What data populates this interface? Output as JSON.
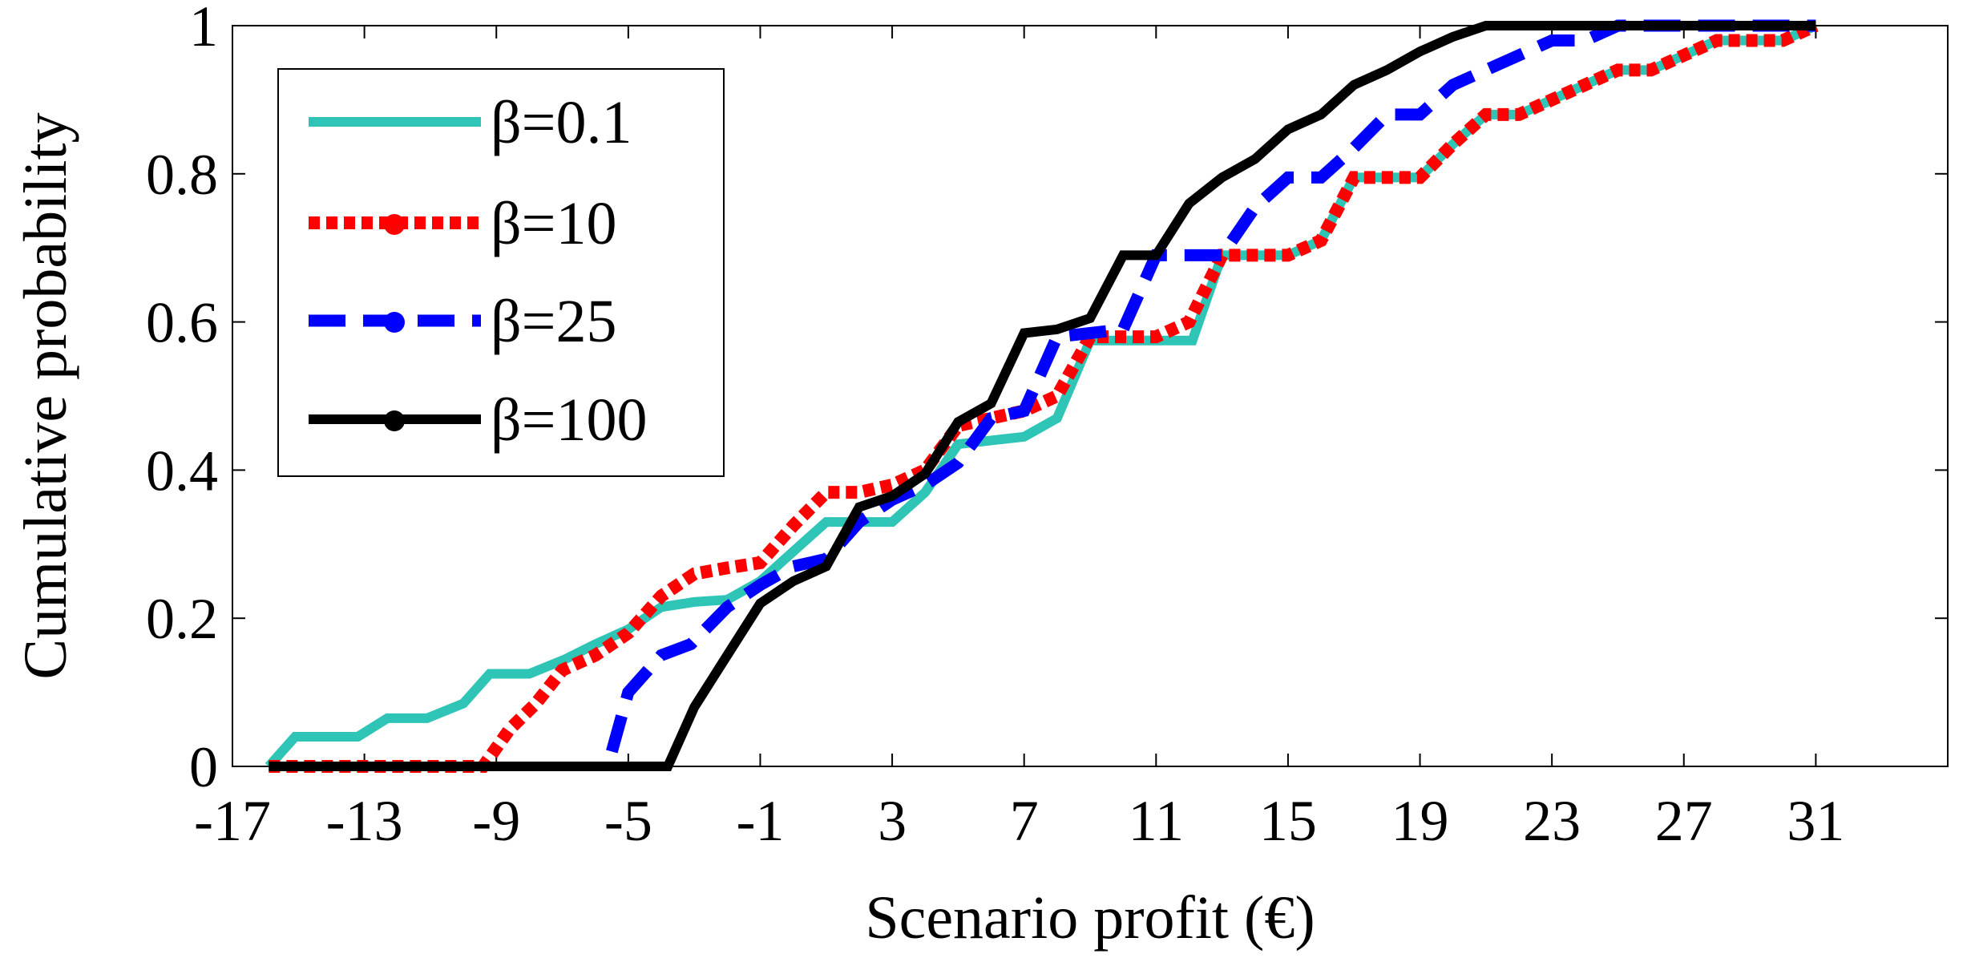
{
  "chart_data": {
    "type": "line",
    "title": "",
    "xlabel": "Scenario profit (€)",
    "ylabel": "Cumulative probability",
    "xlim": [
      -17,
      35
    ],
    "ylim": [
      0,
      1
    ],
    "xticks": [
      -17,
      -13,
      -9,
      -5,
      -1,
      3,
      7,
      11,
      15,
      19,
      23,
      27,
      31
    ],
    "yticks": [
      0,
      0.2,
      0.4,
      0.6,
      0.8,
      1
    ],
    "xtick_labels": [
      "-17",
      "-13",
      "-9",
      "-5",
      "-1",
      "3",
      "7",
      "11",
      "15",
      "19",
      "23",
      "27",
      "31"
    ],
    "ytick_labels": [
      "0",
      "0.2",
      "0.4",
      "0.6",
      "0.8",
      "1"
    ],
    "grid": false,
    "legend_position": "top-left",
    "series": [
      {
        "name": "β=0.1",
        "color": "#2ec4b6",
        "style": "solid",
        "x": [
          -15.9,
          -15.1,
          -13.2,
          -12.3,
          -11.1,
          -10.0,
          -9.2,
          -8.0,
          -6.9,
          -6.0,
          -5.0,
          -4.0,
          -3.0,
          -2.0,
          -1.0,
          0.0,
          1.0,
          2.0,
          3.0,
          4.0,
          5.0,
          6.0,
          7.0,
          8.0,
          9.0,
          12.1,
          13.0,
          14.1,
          15.0,
          16.0,
          17.0,
          18.0,
          19.0,
          20.0,
          21.0,
          22.0,
          23.0,
          24.0,
          25.0,
          26.0,
          27.0,
          28.0,
          29.0,
          30.0,
          31.0
        ],
        "y": [
          0.0,
          0.04,
          0.04,
          0.065,
          0.065,
          0.085,
          0.125,
          0.125,
          0.145,
          0.165,
          0.185,
          0.215,
          0.222,
          0.225,
          0.25,
          0.29,
          0.33,
          0.33,
          0.33,
          0.37,
          0.435,
          0.44,
          0.445,
          0.47,
          0.575,
          0.575,
          0.69,
          0.69,
          0.69,
          0.71,
          0.795,
          0.795,
          0.795,
          0.84,
          0.88,
          0.88,
          0.9,
          0.92,
          0.94,
          0.94,
          0.96,
          0.98,
          0.98,
          0.98,
          1.0
        ]
      },
      {
        "name": "β=10",
        "color": "#ff0000",
        "style": "dotted",
        "x": [
          -15.9,
          -9.4,
          -8.6,
          -7.8,
          -7.0,
          -6.0,
          -5.0,
          -4.0,
          -3.0,
          -2.0,
          -1.0,
          0.0,
          1.0,
          2.0,
          3.0,
          4.0,
          5.0,
          6.0,
          7.0,
          8.0,
          9.0,
          10.0,
          11.0,
          12.0,
          13.0,
          14.1,
          15.0,
          16.0,
          17.0,
          18.0,
          19.0,
          20.0,
          21.0,
          22.0,
          23.0,
          24.0,
          25.0,
          26.0,
          27.0,
          28.0,
          29.0,
          30.0,
          31.0
        ],
        "y": [
          0.0,
          0.0,
          0.05,
          0.085,
          0.13,
          0.15,
          0.18,
          0.23,
          0.26,
          0.268,
          0.275,
          0.325,
          0.37,
          0.37,
          0.38,
          0.4,
          0.46,
          0.47,
          0.48,
          0.5,
          0.58,
          0.58,
          0.58,
          0.6,
          0.69,
          0.69,
          0.69,
          0.71,
          0.795,
          0.795,
          0.795,
          0.84,
          0.88,
          0.88,
          0.9,
          0.92,
          0.94,
          0.94,
          0.96,
          0.98,
          0.98,
          0.98,
          1.0
        ]
      },
      {
        "name": "β=25",
        "color": "#0000ff",
        "style": "dashed",
        "x": [
          -5.5,
          -5.0,
          -4.0,
          -3.1,
          -2.0,
          -1.0,
          0.0,
          1.0,
          2.0,
          3.0,
          4.0,
          5.0,
          6.0,
          7.0,
          8.0,
          9.0,
          10.0,
          11.0,
          12.0,
          13.0,
          14.0,
          15.0,
          16.0,
          17.0,
          18.0,
          19.0,
          20.0,
          21.0,
          22.0,
          23.0,
          24.0,
          25.0,
          26.0,
          27.0,
          28.0,
          29.0,
          30.0,
          31.0
        ],
        "y": [
          0.02,
          0.1,
          0.15,
          0.165,
          0.215,
          0.245,
          0.27,
          0.28,
          0.33,
          0.36,
          0.38,
          0.41,
          0.47,
          0.48,
          0.58,
          0.585,
          0.59,
          0.69,
          0.69,
          0.69,
          0.755,
          0.795,
          0.795,
          0.835,
          0.88,
          0.88,
          0.92,
          0.94,
          0.96,
          0.98,
          0.98,
          1.0,
          1.0,
          1.0,
          1.0,
          1.0,
          1.0,
          1.0
        ]
      },
      {
        "name": "β=100",
        "color": "#000000",
        "style": "solid",
        "x": [
          -15.9,
          -3.8,
          -3.0,
          -2.0,
          -1.0,
          0.0,
          1.0,
          2.0,
          3.0,
          4.0,
          5.0,
          6.0,
          7.0,
          8.0,
          9.0,
          10.0,
          11.0,
          12.0,
          13.0,
          14.0,
          15.0,
          16.0,
          17.0,
          18.0,
          19.0,
          20.0,
          21.0,
          22.0,
          23.0,
          24.0,
          25.0,
          26.0,
          27.0,
          28.0,
          29.0,
          30.0,
          31.0
        ],
        "y": [
          0.0,
          0.0,
          0.08,
          0.15,
          0.22,
          0.25,
          0.27,
          0.35,
          0.365,
          0.395,
          0.465,
          0.49,
          0.585,
          0.59,
          0.605,
          0.69,
          0.69,
          0.76,
          0.795,
          0.82,
          0.86,
          0.88,
          0.92,
          0.94,
          0.965,
          0.985,
          1.0,
          1.0,
          1.0,
          1.0,
          1.0,
          1.0,
          1.0,
          1.0,
          1.0,
          1.0,
          1.0
        ]
      }
    ]
  }
}
